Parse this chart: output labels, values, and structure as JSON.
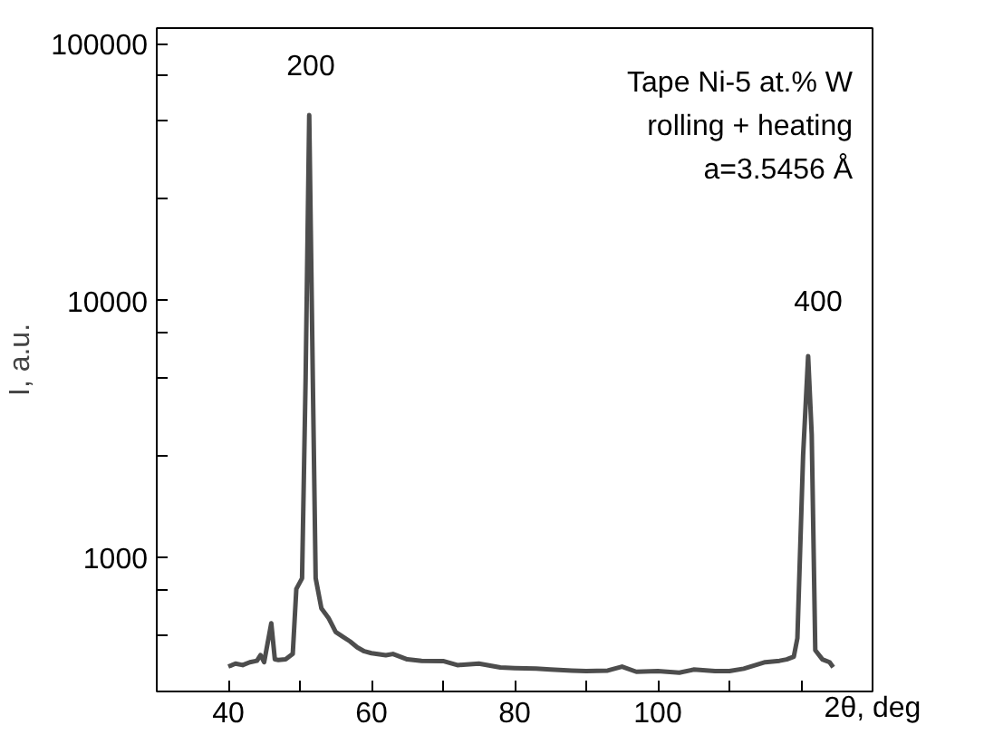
{
  "chart_data": {
    "type": "line",
    "ylabel": "I, a.u.",
    "log": true,
    "grid": false,
    "marker": "none",
    "line_style": "solid",
    "xlim": [
      30,
      130
    ],
    "ylim": [
      300,
      115000
    ],
    "xticks": [
      40,
      {
        "value": 50,
        "label": null
      },
      60,
      {
        "value": 70,
        "label": null
      },
      80,
      {
        "value": 90,
        "label": null
      },
      100,
      {
        "value": 110,
        "label": null
      },
      {
        "value": 120,
        "label": null
      }
    ],
    "xlabel": "2θ, deg",
    "yticks": [
      {
        "value": 500,
        "label": null
      },
      {
        "value": 750,
        "label": null
      },
      1000,
      {
        "value": 2500,
        "label": null
      },
      {
        "value": 5000,
        "label": null
      },
      {
        "value": 7500,
        "label": null
      },
      10000,
      {
        "value": 25000,
        "label": null
      },
      {
        "value": 50000,
        "label": null
      },
      {
        "value": 75000,
        "label": null
      },
      100000
    ],
    "annotations": [
      "200",
      "400",
      "Tape Ni-5 at.% W",
      "rolling + heating",
      "a=3.5456 Å"
    ],
    "series": [
      {
        "color": "#4d4d4d",
        "x": [
          40,
          41,
          42,
          43,
          44,
          44.5,
          45,
          46,
          46.5,
          47,
          48,
          49,
          49.5,
          50.3,
          50.8,
          51.3,
          51.8,
          52.2,
          53,
          54,
          55,
          56,
          57,
          58,
          59,
          60,
          62,
          63,
          65,
          67,
          70,
          72,
          75,
          78,
          80,
          83,
          85,
          88,
          90,
          93,
          95,
          97,
          100,
          103,
          105,
          108,
          110,
          112,
          115,
          117,
          118,
          119,
          119.5,
          120.3,
          121.0,
          121.5,
          122,
          123,
          124,
          124.5
        ],
        "values": [
          375,
          385,
          380,
          390,
          395,
          416,
          390,
          553,
          400,
          398,
          400,
          420,
          752,
          828,
          5000,
          52700,
          5000,
          828,
          632,
          580,
          511,
          490,
          470,
          446,
          430,
          423,
          415,
          420,
          400,
          395,
          394,
          380,
          385,
          372,
          370,
          368,
          365,
          362,
          360,
          362,
          375,
          358,
          360,
          355,
          365,
          360,
          360,
          368,
          390,
          395,
          400,
          410,
          484,
          2500,
          6070,
          3010,
          434,
          400,
          390,
          373
        ]
      }
    ]
  }
}
